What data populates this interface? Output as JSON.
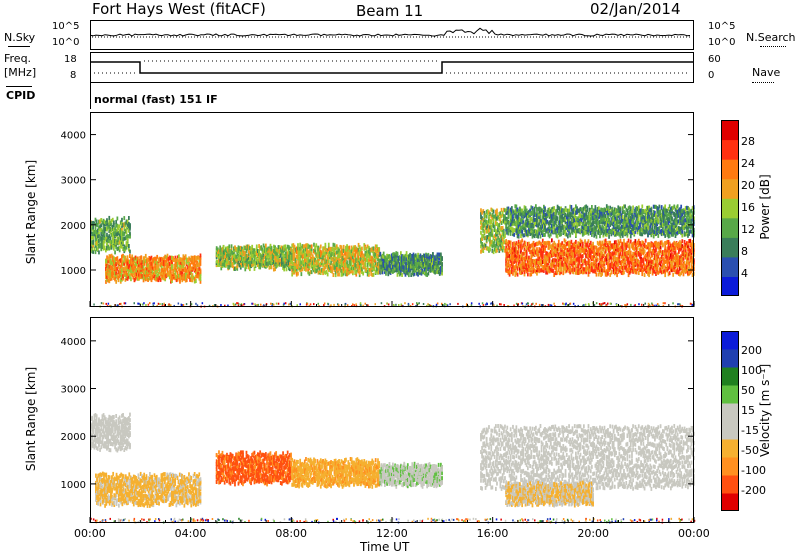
{
  "header": {
    "station": "Fort Hays West (fitACF)",
    "beam": "Beam 11",
    "date": "02/Jan/2014"
  },
  "summary": {
    "nsky_label": "N.Sky",
    "nsearch_label": "N.Search",
    "noise_ticks": [
      "10^5",
      "10^0"
    ],
    "freq_label_1": "Freq.",
    "freq_label_2": "[MHz]",
    "freq_ticks": [
      "18",
      "8"
    ],
    "nave_label": "Nave",
    "nave_ticks": [
      "60",
      "0"
    ],
    "cpid_label": "CPID",
    "cpid_value": "normal (fast) 151 IF"
  },
  "colors": {
    "power": [
      "#0b1bd9",
      "#2a4fb0",
      "#3a7d5a",
      "#58a848",
      "#9acd32",
      "#f0a020",
      "#ff7a10",
      "#ff3010",
      "#e00000"
    ],
    "velocity": [
      "#e00000",
      "#ff5010",
      "#ff9020",
      "#f5b030",
      "#c8c8c0",
      "#c8c8c0",
      "#60c040",
      "#208020",
      "#2040b0",
      "#0b1bd9"
    ]
  },
  "chart_data": [
    {
      "type": "heatmap",
      "name": "power",
      "ylabel": "Slant Range [km]",
      "xlabel": "Time UT",
      "x_ticks": [
        "00:00",
        "04:00",
        "08:00",
        "12:00",
        "16:00",
        "20:00",
        "00:00"
      ],
      "y_ticks": [
        "1000",
        "2000",
        "3000",
        "4000"
      ],
      "xlim": [
        0,
        24
      ],
      "ylim": [
        180,
        4500
      ],
      "colorbar": {
        "label": "Power [dB]",
        "ticks": [
          "28",
          "24",
          "20",
          "16",
          "12",
          "8",
          "4"
        ],
        "range": [
          0,
          30
        ]
      },
      "regions": [
        {
          "t0": 0.0,
          "t1": 1.6,
          "r_center": 1800,
          "r_width": 700,
          "level": 12
        },
        {
          "t0": 0.6,
          "t1": 4.4,
          "r_center": 1050,
          "r_width": 500,
          "level": 20
        },
        {
          "t0": 5.0,
          "t1": 8.0,
          "r_center": 1300,
          "r_width": 450,
          "level": 14
        },
        {
          "t0": 8.0,
          "t1": 11.5,
          "r_center": 1250,
          "r_width": 600,
          "level": 16
        },
        {
          "t0": 11.5,
          "t1": 14.0,
          "r_center": 1150,
          "r_width": 400,
          "level": 10
        },
        {
          "t0": 15.5,
          "t1": 16.5,
          "r_center": 1900,
          "r_width": 900,
          "level": 14
        },
        {
          "t0": 16.5,
          "t1": 24.0,
          "r_center": 1300,
          "r_width": 700,
          "level": 22
        },
        {
          "t0": 16.5,
          "t1": 24.0,
          "r_center": 2100,
          "r_width": 600,
          "level": 10
        }
      ]
    },
    {
      "type": "heatmap",
      "name": "velocity",
      "ylabel": "Slant Range [km]",
      "xlabel": "Time UT",
      "x_ticks": [
        "00:00",
        "04:00",
        "08:00",
        "12:00",
        "16:00",
        "20:00",
        "00:00"
      ],
      "y_ticks": [
        "1000",
        "2000",
        "3000",
        "4000"
      ],
      "xlim": [
        0,
        24
      ],
      "ylim": [
        180,
        4500
      ],
      "colorbar": {
        "label": "Velocity [m s⁻¹]",
        "ticks": [
          "200",
          "100",
          "50",
          "15",
          "-15",
          "-50",
          "-100",
          "-200"
        ],
        "range": [
          -250,
          250
        ]
      },
      "regions": [
        {
          "t0": 0.0,
          "t1": 1.6,
          "r_center": 2100,
          "r_width": 700,
          "level": 0
        },
        {
          "t0": 0.2,
          "t1": 4.4,
          "r_center": 900,
          "r_width": 600,
          "level": -60
        },
        {
          "t0": 5.0,
          "t1": 8.0,
          "r_center": 1350,
          "r_width": 600,
          "level": -160
        },
        {
          "t0": 8.0,
          "t1": 11.5,
          "r_center": 1250,
          "r_width": 500,
          "level": -90
        },
        {
          "t0": 11.5,
          "t1": 14.0,
          "r_center": 1200,
          "r_width": 400,
          "level": 40
        },
        {
          "t0": 15.5,
          "t1": 24.0,
          "r_center": 1600,
          "r_width": 1300,
          "level": 0
        },
        {
          "t0": 16.5,
          "t1": 20.0,
          "r_center": 800,
          "r_width": 400,
          "level": -50
        }
      ]
    }
  ]
}
